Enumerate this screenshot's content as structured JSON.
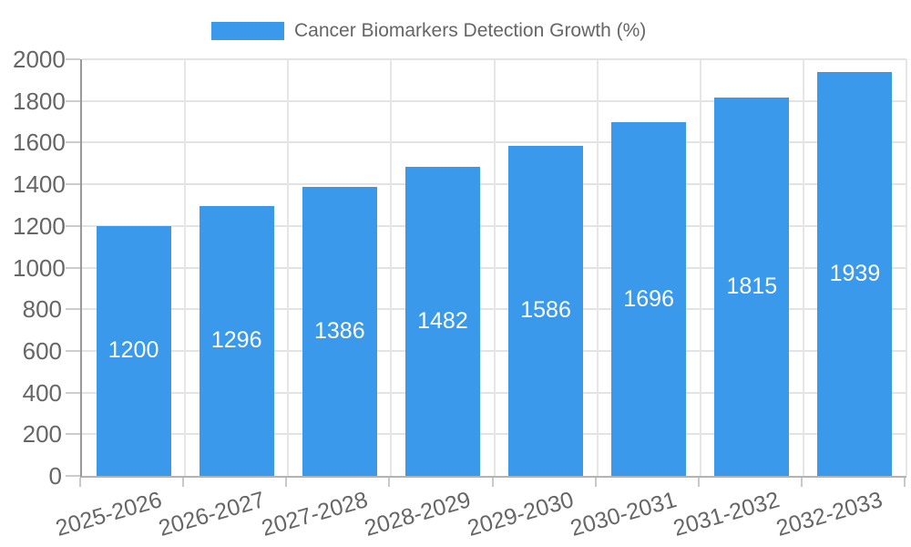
{
  "chart_data": {
    "type": "bar",
    "title": "Cancer Biomarkers Detection Growth (%)",
    "legend_entries": [
      "Cancer Biomarkers Detection Growth (%)"
    ],
    "legend_position": "top",
    "categories": [
      "2025-2026",
      "2026-2027",
      "2027-2028",
      "2028-2029",
      "2029-2030",
      "2030-2031",
      "2031-2032",
      "2032-2033"
    ],
    "values": [
      1200,
      1296,
      1386,
      1482,
      1586,
      1696,
      1815,
      1939
    ],
    "bar_value_labels": [
      "1200",
      "1296",
      "1386",
      "1482",
      "1586",
      "1696",
      "1815",
      "1939"
    ],
    "xlabel": "",
    "ylabel": "",
    "ylim": [
      0,
      2000
    ],
    "ytick_step": 200,
    "ytick_labels": [
      "0",
      "200",
      "400",
      "600",
      "800",
      "1000",
      "1200",
      "1400",
      "1600",
      "1800",
      "2000"
    ],
    "grid": true,
    "bar_labels_shown": true,
    "colors": {
      "bar": "#3b99ec",
      "bar_label": "#ffffff",
      "axis_text": "#666666",
      "legend_text": "#666666",
      "gridline": "#e3e3e3",
      "y_axis_line": "#999999",
      "x_axis_line": "#b3b3b3",
      "tick": "#c9c9c9",
      "background": "#ffffff"
    }
  }
}
